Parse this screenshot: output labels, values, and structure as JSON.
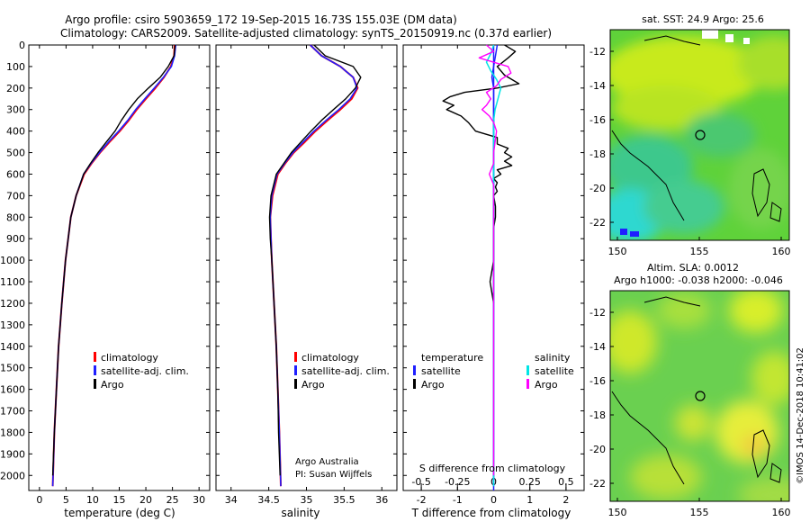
{
  "header": {
    "title_line1": "Argo profile: csiro 5903659_172 19-Sep-2015 16.73S 155.03E (DM data)",
    "title_line2": "Climatology: CARS2009. Satellite-adjusted climatology: synTS_20150919.nc (0.37d earlier)"
  },
  "depth_axis": {
    "ticks": [
      0,
      100,
      200,
      300,
      400,
      500,
      600,
      700,
      800,
      900,
      1000,
      1100,
      1200,
      1300,
      1400,
      1500,
      1600,
      1700,
      1800,
      1900,
      2000
    ],
    "range": [
      0,
      2070
    ]
  },
  "colors": {
    "climatology": "#ff0000",
    "satellite": "#1f1fff",
    "argo": "#000000",
    "salinity_sat": "#00e5e5",
    "salinity_argo": "#ff00ff"
  },
  "chart_data": [
    {
      "type": "line",
      "panel": "temperature",
      "xlabel": "temperature (deg C)",
      "xlim": [
        -2,
        32
      ],
      "xticks": [
        0,
        5,
        10,
        15,
        20,
        25,
        30
      ],
      "xtick_labels": [
        "0",
        "5",
        "10",
        "15",
        "20",
        "25",
        "30"
      ],
      "legend": [
        "climatology",
        "satellite-adj. clim.",
        "Argo"
      ],
      "series": [
        {
          "name": "climatology",
          "depth": [
            0,
            50,
            100,
            150,
            200,
            250,
            300,
            350,
            400,
            450,
            500,
            550,
            600,
            700,
            800,
            1000,
            1200,
            1400,
            1600,
            1800,
            2050
          ],
          "values": [
            25.4,
            25.3,
            24.7,
            23.4,
            21.8,
            20.0,
            18.3,
            16.8,
            15.1,
            13.2,
            11.4,
            9.8,
            8.4,
            6.9,
            5.9,
            4.9,
            4.2,
            3.6,
            3.2,
            2.8,
            2.5
          ]
        },
        {
          "name": "satellite-adj. clim.",
          "depth": [
            0,
            50,
            100,
            150,
            200,
            250,
            300,
            350,
            400,
            450,
            500,
            550,
            600,
            700,
            800,
            1000,
            1200,
            1400,
            1600,
            1800,
            2050
          ],
          "values": [
            25.6,
            25.4,
            24.8,
            23.3,
            21.6,
            19.8,
            18.1,
            16.6,
            14.9,
            13.0,
            11.3,
            9.7,
            8.3,
            6.9,
            5.9,
            4.9,
            4.2,
            3.6,
            3.2,
            2.8,
            2.5
          ]
        },
        {
          "name": "Argo",
          "depth": [
            0,
            50,
            100,
            150,
            200,
            250,
            300,
            350,
            400,
            450,
            500,
            550,
            600,
            700,
            800,
            1000,
            1200,
            1400,
            1600,
            1800,
            2000
          ],
          "values": [
            25.5,
            25.3,
            24.2,
            22.7,
            20.5,
            18.4,
            16.8,
            15.4,
            14.2,
            12.6,
            11.0,
            9.6,
            8.3,
            6.9,
            5.9,
            4.9,
            4.2,
            3.6,
            3.2,
            2.8,
            2.5
          ]
        }
      ]
    },
    {
      "type": "line",
      "panel": "salinity",
      "xlabel": "salinity",
      "xlim": [
        33.8,
        36.2
      ],
      "xticks": [
        34,
        34.5,
        35,
        35.5,
        36
      ],
      "xtick_labels": [
        "34",
        "34.5",
        "35",
        "35.5",
        "36"
      ],
      "legend": [
        "climatology",
        "satellite-adj. clim.",
        "Argo"
      ],
      "series": [
        {
          "name": "climatology",
          "depth": [
            0,
            50,
            100,
            150,
            200,
            250,
            300,
            350,
            400,
            450,
            500,
            550,
            600,
            700,
            800,
            900,
            1000,
            1200,
            1400,
            1600,
            1800,
            2050
          ],
          "values": [
            35.05,
            35.2,
            35.45,
            35.62,
            35.68,
            35.6,
            35.45,
            35.28,
            35.12,
            34.98,
            34.83,
            34.72,
            34.62,
            34.55,
            34.52,
            34.53,
            34.54,
            34.57,
            34.6,
            34.62,
            34.64,
            34.66
          ]
        },
        {
          "name": "satellite-adj. clim.",
          "depth": [
            0,
            50,
            100,
            150,
            200,
            250,
            300,
            350,
            400,
            450,
            500,
            550,
            600,
            700,
            800,
            900,
            1000,
            1200,
            1400,
            1600,
            1800,
            2050
          ],
          "values": [
            35.05,
            35.2,
            35.45,
            35.62,
            35.67,
            35.58,
            35.43,
            35.26,
            35.1,
            34.96,
            34.82,
            34.71,
            34.61,
            34.54,
            34.52,
            34.53,
            34.54,
            34.57,
            34.6,
            34.62,
            34.64,
            34.66
          ]
        },
        {
          "name": "Argo",
          "depth": [
            0,
            50,
            100,
            150,
            200,
            250,
            300,
            350,
            400,
            450,
            500,
            550,
            600,
            700,
            800,
            900,
            1000,
            1200,
            1400,
            1600,
            1800,
            2000
          ],
          "values": [
            35.1,
            35.25,
            35.62,
            35.72,
            35.65,
            35.52,
            35.36,
            35.2,
            35.06,
            34.93,
            34.8,
            34.7,
            34.6,
            34.53,
            34.51,
            34.52,
            34.54,
            34.57,
            34.6,
            34.62,
            34.63,
            34.65
          ]
        }
      ]
    },
    {
      "type": "line",
      "panel": "difference",
      "xlabel": "T difference from climatology",
      "xlabel_top": "S difference from climatology",
      "xlim": [
        -2.5,
        2.5
      ],
      "xticks": [
        -2,
        -1,
        0,
        1,
        2
      ],
      "xtick_labels": [
        "-2",
        "-1",
        "0",
        "1",
        "2"
      ],
      "sticks": [
        -0.5,
        -0.25,
        0,
        0.25,
        0.5
      ],
      "stick_labels": [
        "-0.5",
        "-0.25",
        "0",
        "0.25",
        "0.5"
      ],
      "legend_temperature_title": "temperature",
      "legend_salinity_title": "salinity",
      "legend_temperature": [
        "satellite",
        "Argo"
      ],
      "legend_salinity": [
        "satellite",
        "Argo"
      ],
      "series": [
        {
          "name": "T satellite",
          "depth": [
            0,
            50,
            100,
            150,
            200,
            300,
            400,
            500,
            600,
            800,
            1000,
            1500,
            2050
          ],
          "values": [
            0.1,
            0.05,
            0.0,
            -0.05,
            0.0,
            0.0,
            0.0,
            0.0,
            0.0,
            0.0,
            0.0,
            0.0,
            0.0
          ]
        },
        {
          "name": "T Argo",
          "depth": [
            0,
            30,
            60,
            100,
            140,
            180,
            200,
            220,
            240,
            260,
            280,
            300,
            330,
            360,
            400,
            430,
            460,
            480,
            500,
            520,
            540,
            560,
            580,
            600,
            620,
            640,
            660,
            680,
            700,
            750,
            800,
            850,
            900,
            950,
            1000,
            1050,
            1100,
            1150,
            1200
          ],
          "values": [
            0.3,
            0.6,
            0.4,
            0.1,
            0.3,
            0.7,
            0.1,
            -0.8,
            -1.2,
            -1.4,
            -1.1,
            -1.3,
            -0.9,
            -0.7,
            -0.5,
            0.1,
            0.1,
            0.4,
            0.3,
            0.5,
            0.3,
            0.5,
            0.1,
            0.2,
            0.0,
            0.1,
            0.05,
            0.1,
            0.0,
            0.05,
            0.05,
            0.0,
            0.0,
            0.0,
            0.0,
            -0.05,
            -0.1,
            -0.05,
            0.0
          ]
        },
        {
          "name": "S satellite",
          "depth": [
            0,
            40,
            80,
            120,
            160,
            200,
            250,
            300,
            350,
            400,
            500,
            700,
            1000,
            1500,
            2050
          ],
          "values": [
            0.0,
            -0.02,
            -0.05,
            -0.02,
            0.02,
            0.05,
            0.03,
            0.01,
            0.0,
            0.0,
            0.0,
            0.0,
            0.0,
            0.0,
            0.0
          ]
        },
        {
          "name": "S Argo",
          "depth": [
            0,
            30,
            60,
            100,
            130,
            160,
            190,
            220,
            250,
            280,
            300,
            330,
            360,
            400,
            450,
            500,
            550,
            600,
            650,
            700,
            800,
            900,
            1000,
            1500,
            2000
          ],
          "values": [
            -0.05,
            0.0,
            -0.1,
            0.1,
            0.12,
            0.05,
            0.02,
            -0.05,
            -0.02,
            -0.05,
            -0.08,
            -0.03,
            0.0,
            0.02,
            0.01,
            0.0,
            0.0,
            -0.03,
            0.0,
            0.0,
            0.0,
            0.0,
            0.0,
            0.0,
            0.0
          ]
        }
      ]
    }
  ],
  "credits": {
    "line1": "Argo Australia",
    "line2": "PI: Susan Wijffels"
  },
  "maps": {
    "sst_title": "sat. SST: 24.9 Argo: 25.6",
    "sla_title_line1": "Altim. SLA: 0.0012",
    "sla_title_line2": "Argo h1000: -0.038 h2000: -0.046",
    "lat_ticks": [
      "-12",
      "-14",
      "-16",
      "-18",
      "-20",
      "-22"
    ],
    "lon_ticks": [
      "150",
      "155",
      "160"
    ],
    "float_position": {
      "lat": -16.73,
      "lon": 155.03
    }
  },
  "footer": {
    "stamp": "©IMOS 14-Dec-2018 10:41:02"
  }
}
